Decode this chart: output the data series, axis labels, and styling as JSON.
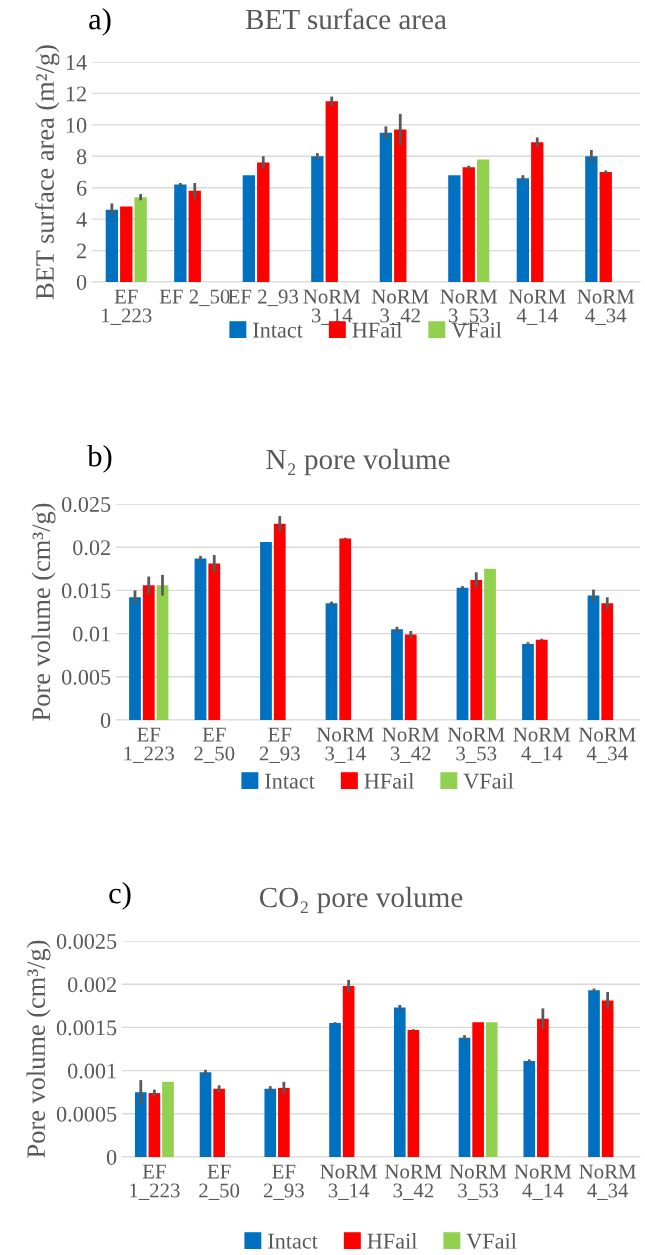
{
  "chart_data": [
    {
      "type": "bar",
      "title": "BET surface area",
      "ylabel": "BET surface area (m²/g)",
      "annotations": [
        "a)"
      ],
      "categories": [
        "EF\n1_223",
        "EF 2_50",
        "EF 2_93",
        "NoRM\n3_14",
        "NoRM\n3_42",
        "NoRM\n3_53",
        "NoRM\n4_14",
        "NoRM\n4_34"
      ],
      "series": [
        {
          "name": "Intact",
          "color": "#0070c0",
          "values": [
            4.6,
            6.2,
            6.8,
            8.0,
            9.5,
            6.8,
            6.6,
            8.0
          ],
          "errors": [
            0.4,
            0.1,
            0,
            0.2,
            0.4,
            0,
            0.2,
            0.4
          ]
        },
        {
          "name": "HFail",
          "color": "#ff0000",
          "values": [
            4.8,
            5.8,
            7.6,
            11.5,
            9.7,
            7.3,
            8.9,
            7.0
          ],
          "errors": [
            0,
            0.5,
            0.4,
            0.3,
            1.0,
            0.1,
            0.3,
            0.1
          ]
        },
        {
          "name": "VFail",
          "color": "#92d050",
          "values": [
            5.4,
            null,
            null,
            null,
            null,
            7.8,
            null,
            null
          ],
          "errors": [
            0.2,
            null,
            null,
            null,
            null,
            0,
            null,
            null
          ]
        }
      ],
      "ylim": [
        0,
        14
      ],
      "yticks": [
        0,
        2,
        4,
        6,
        8,
        10,
        12,
        14
      ],
      "grid": "y",
      "legend": "bottom"
    },
    {
      "type": "bar",
      "title": "N₂ pore volume",
      "ylabel": "Pore volume (cm³/g)",
      "annotations": [
        "b)"
      ],
      "categories": [
        "EF\n1_223",
        "EF\n2_50",
        "EF\n2_93",
        "NoRM\n3_14",
        "NoRM\n3_42",
        "NoRM\n3_53",
        "NoRM\n4_14",
        "NoRM\n4_34"
      ],
      "series": [
        {
          "name": "Intact",
          "color": "#0070c0",
          "values": [
            0.0142,
            0.0187,
            0.0206,
            0.0135,
            0.0105,
            0.0153,
            0.0088,
            0.0144
          ],
          "errors": [
            0.0008,
            0.0003,
            0,
            0.0002,
            0.0003,
            0.0002,
            0.0002,
            0.0007
          ]
        },
        {
          "name": "HFail",
          "color": "#ff0000",
          "values": [
            0.0156,
            0.0181,
            0.0227,
            0.021,
            0.0099,
            0.0162,
            0.0093,
            0.0135
          ],
          "errors": [
            0.001,
            0.001,
            0.0009,
            0.0001,
            0.0004,
            0.0009,
            0.0001,
            0.0007
          ]
        },
        {
          "name": "VFail",
          "color": "#92d050",
          "values": [
            0.0156,
            null,
            null,
            null,
            null,
            0.0175,
            null,
            null
          ],
          "errors": [
            0.0012,
            null,
            null,
            null,
            null,
            0,
            null,
            null
          ]
        }
      ],
      "ylim": [
        0,
        0.025
      ],
      "yticks": [
        0,
        0.005,
        0.01,
        0.015,
        0.02,
        0.025
      ],
      "grid": "y",
      "legend": "bottom"
    },
    {
      "type": "bar",
      "title": "CO₂ pore volume",
      "ylabel": "Pore volume (cm³/g)",
      "annotations": [
        "c)"
      ],
      "categories": [
        "EF\n1_223",
        "EF\n2_50",
        "EF\n2_93",
        "NoRM\n3_14",
        "NoRM\n3_42",
        "NoRM\n3_53",
        "NoRM\n4_14",
        "NoRM\n4_34"
      ],
      "series": [
        {
          "name": "Intact",
          "color": "#0070c0",
          "values": [
            0.00075,
            0.00098,
            0.00079,
            0.00155,
            0.00173,
            0.00138,
            0.00111,
            0.00193
          ],
          "errors": [
            0.00014,
            3e-05,
            3e-05,
            1e-05,
            3e-05,
            3e-05,
            2e-05,
            2e-05
          ]
        },
        {
          "name": "HFail",
          "color": "#ff0000",
          "values": [
            0.00074,
            0.00079,
            0.0008,
            0.00198,
            0.00147,
            0.00156,
            0.0016,
            0.00181
          ],
          "errors": [
            4e-05,
            4e-05,
            7e-05,
            7e-05,
            1e-05,
            0,
            0.00012,
            0.0001
          ]
        },
        {
          "name": "VFail",
          "color": "#92d050",
          "values": [
            0.00087,
            null,
            null,
            null,
            null,
            0.00156,
            null,
            null
          ],
          "errors": [
            0,
            null,
            null,
            null,
            null,
            0,
            null,
            null
          ]
        }
      ],
      "ylim": [
        0,
        0.0025
      ],
      "yticks": [
        0,
        0.0005,
        0.001,
        0.0015,
        0.002,
        0.0025
      ],
      "grid": "y",
      "legend": "bottom"
    }
  ]
}
